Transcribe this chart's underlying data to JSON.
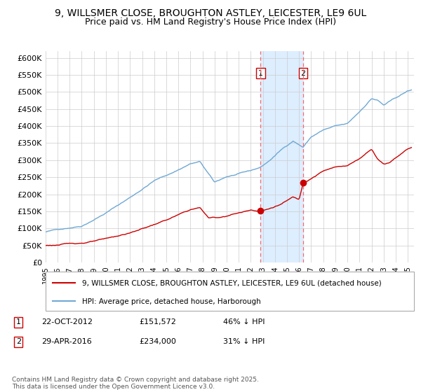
{
  "title": "9, WILLSMER CLOSE, BROUGHTON ASTLEY, LEICESTER, LE9 6UL",
  "subtitle": "Price paid vs. HM Land Registry's House Price Index (HPI)",
  "title_fontsize": 10,
  "subtitle_fontsize": 9,
  "ylabel_ticks": [
    "£0",
    "£50K",
    "£100K",
    "£150K",
    "£200K",
    "£250K",
    "£300K",
    "£350K",
    "£400K",
    "£450K",
    "£500K",
    "£550K",
    "£600K"
  ],
  "ytick_values": [
    0,
    50000,
    100000,
    150000,
    200000,
    250000,
    300000,
    350000,
    400000,
    450000,
    500000,
    550000,
    600000
  ],
  "ylim": [
    0,
    620000
  ],
  "hpi_color": "#6fa8d4",
  "price_color": "#cc0000",
  "marker_color": "#cc0000",
  "vline_color": "#ff6666",
  "shade_color": "#ddeeff",
  "grid_color": "#cccccc",
  "background_color": "#ffffff",
  "purchase1_date_num": 2012.81,
  "purchase1_price": 151572,
  "purchase1_label": "1",
  "purchase2_date_num": 2016.33,
  "purchase2_price": 234000,
  "purchase2_label": "2",
  "legend_label_price": "9, WILLSMER CLOSE, BROUGHTON ASTLEY, LEICESTER, LE9 6UL (detached house)",
  "legend_label_hpi": "HPI: Average price, detached house, Harborough",
  "footer_text": "Contains HM Land Registry data © Crown copyright and database right 2025.\nThis data is licensed under the Open Government Licence v3.0.",
  "table_row1": [
    "1",
    "22-OCT-2012",
    "£151,572",
    "46% ↓ HPI"
  ],
  "table_row2": [
    "2",
    "29-APR-2016",
    "£234,000",
    "31% ↓ HPI"
  ],
  "xmin": 1995.0,
  "xmax": 2025.5
}
